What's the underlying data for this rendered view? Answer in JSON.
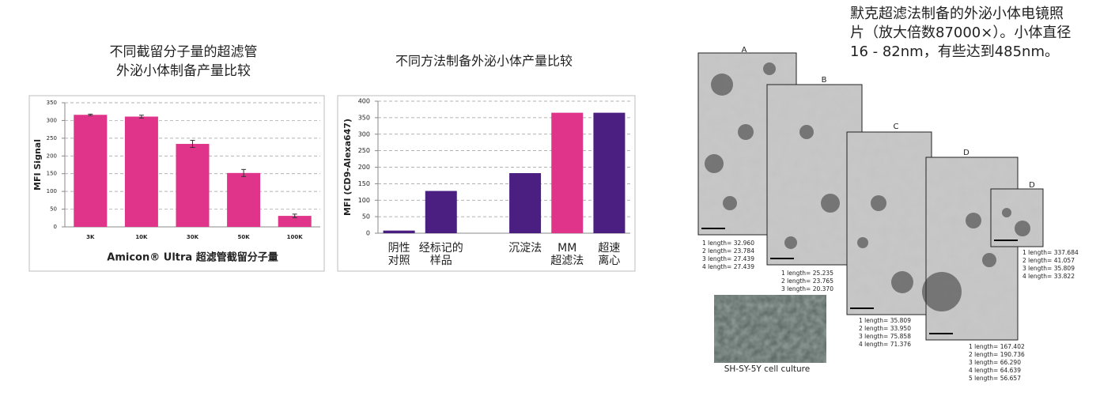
{
  "chart_data": [
    {
      "type": "bar",
      "title": [
        "不同截留分子量的超滤管",
        "外泌小体制备产量比较"
      ],
      "y_label": "MFI Signal",
      "x_label": "Amicon® Ultra 超滤管截留分子量",
      "categories": [
        [
          "3K"
        ],
        [
          "10K"
        ],
        [
          "30K"
        ],
        [
          "50K"
        ],
        [
          "100K"
        ]
      ],
      "values": [
        316,
        311,
        234,
        152,
        31
      ],
      "errors": [
        2,
        4,
        10,
        10,
        5
      ],
      "colors": [
        "#e0338a",
        "#e0338a",
        "#e0338a",
        "#e0338a",
        "#e0338a"
      ],
      "ylim": [
        0,
        350
      ],
      "yticks": [
        0,
        50,
        100,
        150,
        200,
        250,
        300,
        350
      ],
      "grid": true
    },
    {
      "type": "bar",
      "title": [
        "不同方法制备外泌小体产量比较"
      ],
      "y_label": "MFI (CD9-Alexa647)",
      "categories": [
        [
          "阴性",
          "对照"
        ],
        [
          "经标记的",
          "样品"
        ],
        null,
        [
          "沉淀法"
        ],
        [
          "MM",
          "超滤法"
        ],
        [
          "超速",
          "离心"
        ]
      ],
      "values": [
        8,
        128,
        null,
        182,
        365,
        365
      ],
      "colors": [
        "#4b1e82",
        "#4b1e82",
        null,
        "#4b1e82",
        "#e0338a",
        "#4b1e82"
      ],
      "ylim": [
        0,
        400
      ],
      "yticks": [
        0,
        50,
        100,
        150,
        200,
        250,
        300,
        350,
        400
      ],
      "grid": true
    }
  ],
  "micrographs": {
    "caption": [
      "默克超滤法制备的外泌小体电镜照",
      "片（放大倍数87000×）。小体直径",
      "16 - 82nm，有些达到485nm。"
    ],
    "panels": [
      {
        "label": "A",
        "lengths": [
          "1 length= 32.960",
          "2 length= 23.784",
          "3 length= 27.439",
          "4 length= 27.439"
        ]
      },
      {
        "label": "B",
        "lengths": [
          "1 length= 25.235",
          "2 length= 23.765",
          "3 length= 20.370"
        ]
      },
      {
        "label": "C",
        "lengths": [
          "1 length= 35.809",
          "2 length= 33.950",
          "3 length= 75.858",
          "4 length= 71.376"
        ]
      },
      {
        "label": "D",
        "lengths": [
          "1 length= 167.402",
          "2 length= 190.736",
          "3 length= 66.290",
          "4 length= 64.639",
          "5 length= 56.657"
        ]
      },
      {
        "label": "D",
        "lengths": [
          "1 length= 337.684",
          "2 length= 41.057",
          "3 length= 35.809",
          "4 length= 33.822"
        ]
      }
    ],
    "cell_caption": "SH-SY-5Y cell culture"
  }
}
